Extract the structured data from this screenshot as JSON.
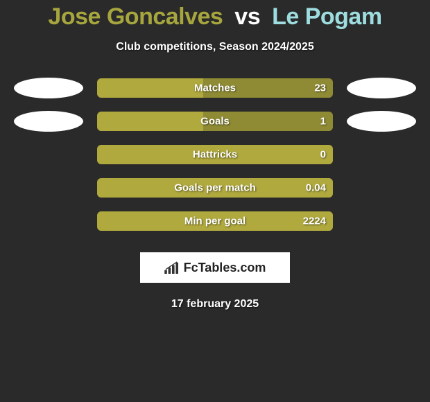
{
  "title": {
    "player1": "Jose Goncalves",
    "vs": "vs",
    "player2": "Le Pogam",
    "player1_color": "#a7a63e",
    "player2_color": "#9ddde0"
  },
  "subtitle": "Club competitions, Season 2024/2025",
  "bar_colors": {
    "left": "#b0a93e",
    "right": "#8f8b34",
    "outer_border": "#8f8b34"
  },
  "stats": [
    {
      "label": "Matches",
      "value": "23",
      "left_pct": 45,
      "show_ellipses": true
    },
    {
      "label": "Goals",
      "value": "1",
      "left_pct": 45,
      "show_ellipses": true
    },
    {
      "label": "Hattricks",
      "value": "0",
      "left_pct": 100,
      "show_ellipses": false
    },
    {
      "label": "Goals per match",
      "value": "0.04",
      "left_pct": 100,
      "show_ellipses": false
    },
    {
      "label": "Min per goal",
      "value": "2224",
      "left_pct": 100,
      "show_ellipses": false
    }
  ],
  "branding": "FcTables.com",
  "date": "17 february 2025",
  "background_color": "#2a2a2a",
  "ellipse_color": "#ffffff"
}
